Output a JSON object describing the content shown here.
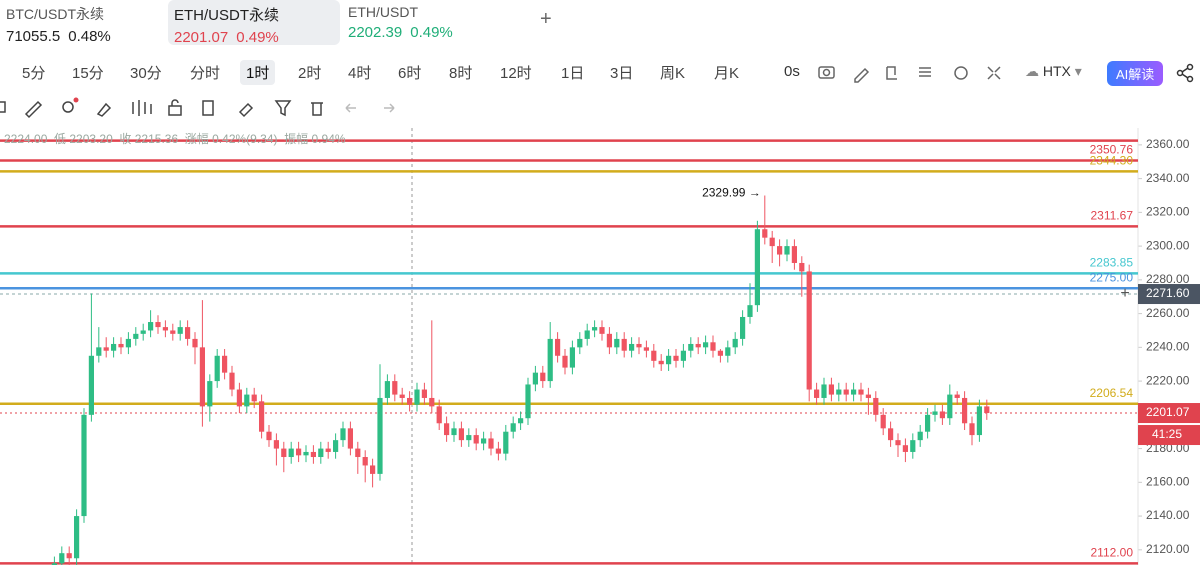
{
  "tabs": [
    {
      "symbol": "BTC/USDT永续",
      "price": "71055.5",
      "change": "0.48%"
    },
    {
      "symbol": "ETH/USDT永续",
      "price": "2201.07",
      "change": "0.49%"
    },
    {
      "symbol": "ETH/USDT",
      "price": "2202.39",
      "change": "0.49%"
    }
  ],
  "add_tab": "+",
  "timeframes": [
    "5分",
    "15分",
    "30分",
    "分时",
    "1时",
    "2时",
    "4时",
    "6时",
    "8时",
    "12时",
    "1日",
    "3日",
    "周K",
    "月K"
  ],
  "selected_timeframe": "1时",
  "refresh": "0s",
  "exchange": "HTX",
  "ai_button": "AI解读",
  "ohlc_info": "2224.00  低 2203.20  收 2215.36  涨幅 0.42%(9.34)  振幅 0.94%",
  "chart_data": {
    "type": "candlestick",
    "ylim": [
      2111,
      2370
    ],
    "yticks": [
      {
        "value": 2120,
        "label": "2120.00"
      },
      {
        "value": 2140,
        "label": "2140.00"
      },
      {
        "value": 2160,
        "label": "2160.00"
      },
      {
        "value": 2180,
        "label": "2180.00"
      },
      {
        "value": 2200,
        "label": "2200.00"
      },
      {
        "value": 2220,
        "label": "2220.00"
      },
      {
        "value": 2240,
        "label": "2240.00"
      },
      {
        "value": 2260,
        "label": "2260.00"
      },
      {
        "value": 2280,
        "label": "2280.00"
      },
      {
        "value": 2300,
        "label": "2300.00"
      },
      {
        "value": 2320,
        "label": "2320.00"
      },
      {
        "value": 2340,
        "label": "2340.00"
      },
      {
        "value": 2360,
        "label": "2360.00"
      }
    ],
    "up_color": "#2ebd85",
    "down_color": "#ef5461",
    "open": [
      2100,
      2105,
      2112,
      2118,
      2115,
      2140,
      2200,
      2235,
      2240,
      2238,
      2242,
      2240,
      2245,
      2248,
      2250,
      2255,
      2252,
      2250,
      2248,
      2252,
      2245,
      2240,
      2205,
      2220,
      2235,
      2225,
      2215,
      2205,
      2212,
      2208,
      2190,
      2185,
      2180,
      2175,
      2180,
      2176,
      2178,
      2175,
      2180,
      2178,
      2185,
      2192,
      2180,
      2175,
      2170,
      2165,
      2210,
      2220,
      2212,
      2210,
      2206,
      2215,
      2210,
      2205,
      2195,
      2188,
      2192,
      2185,
      2188,
      2183,
      2186,
      2180,
      2177,
      2190,
      2195,
      2198,
      2218,
      2225,
      2220,
      2245,
      2235,
      2228,
      2240,
      2245,
      2250,
      2252,
      2248,
      2240,
      2245,
      2238,
      2242,
      2240,
      2238,
      2232,
      2230,
      2235,
      2232,
      2238,
      2242,
      2240,
      2243,
      2238,
      2235,
      2240,
      2245,
      2258,
      2265,
      2310,
      2305,
      2300,
      2295,
      2300,
      2290,
      2285,
      2215,
      2210,
      2218,
      2212,
      2215,
      2212,
      2215,
      2212,
      2210,
      2200,
      2192,
      2185,
      2182,
      2178,
      2185,
      2190,
      2200,
      2202,
      2198,
      2212,
      2210,
      2195,
      2188,
      2205
    ],
    "high": [
      2109,
      2116,
      2122,
      2122,
      2144,
      2204,
      2272,
      2252,
      2246,
      2246,
      2246,
      2249,
      2252,
      2254,
      2262,
      2259,
      2256,
      2254,
      2256,
      2256,
      2249,
      2268,
      2224,
      2239,
      2239,
      2229,
      2219,
      2216,
      2216,
      2212,
      2194,
      2189,
      2184,
      2184,
      2184,
      2182,
      2182,
      2184,
      2184,
      2189,
      2196,
      2196,
      2184,
      2179,
      2174,
      2230,
      2224,
      2224,
      2216,
      2214,
      2219,
      2219,
      2256,
      2209,
      2199,
      2196,
      2196,
      2192,
      2192,
      2190,
      2190,
      2184,
      2194,
      2199,
      2202,
      2222,
      2229,
      2229,
      2255,
      2249,
      2239,
      2244,
      2249,
      2254,
      2256,
      2256,
      2252,
      2249,
      2249,
      2246,
      2246,
      2244,
      2242,
      2236,
      2239,
      2239,
      2242,
      2246,
      2246,
      2247,
      2247,
      2239,
      2244,
      2249,
      2262,
      2278,
      2315,
      2329.99,
      2309,
      2304,
      2304,
      2304,
      2294,
      2289,
      2219,
      2222,
      2222,
      2219,
      2219,
      2219,
      2219,
      2216,
      2214,
      2204,
      2196,
      2189,
      2186,
      2189,
      2194,
      2204,
      2206,
      2206,
      2218,
      2214,
      2214,
      2199,
      2209,
      2209
    ],
    "low": [
      2096,
      2101,
      2108,
      2111,
      2111,
      2136,
      2196,
      2231,
      2234,
      2234,
      2236,
      2236,
      2241,
      2244,
      2246,
      2248,
      2246,
      2244,
      2244,
      2241,
      2230,
      2193,
      2196,
      2216,
      2221,
      2211,
      2201,
      2201,
      2204,
      2186,
      2181,
      2170,
      2166,
      2171,
      2172,
      2172,
      2171,
      2171,
      2174,
      2174,
      2181,
      2176,
      2165,
      2160,
      2157,
      2161,
      2206,
      2208,
      2206,
      2202,
      2202,
      2206,
      2201,
      2191,
      2184,
      2184,
      2181,
      2181,
      2179,
      2179,
      2176,
      2173,
      2173,
      2186,
      2191,
      2194,
      2214,
      2216,
      2216,
      2231,
      2224,
      2224,
      2236,
      2241,
      2246,
      2244,
      2236,
      2236,
      2234,
      2234,
      2236,
      2234,
      2228,
      2226,
      2226,
      2228,
      2228,
      2234,
      2236,
      2236,
      2234,
      2231,
      2231,
      2236,
      2241,
      2254,
      2261,
      2301,
      2290,
      2288,
      2291,
      2286,
      2270,
      2208,
      2206,
      2206,
      2208,
      2208,
      2208,
      2208,
      2208,
      2200,
      2196,
      2188,
      2181,
      2175,
      2172,
      2174,
      2181,
      2186,
      2196,
      2194,
      2194,
      2206,
      2191,
      2182,
      2184,
      2197
    ],
    "close": [
      2105,
      2112,
      2118,
      2115,
      2140,
      2200,
      2235,
      2240,
      2238,
      2242,
      2240,
      2245,
      2248,
      2250,
      2255,
      2252,
      2250,
      2248,
      2252,
      2245,
      2240,
      2205,
      2220,
      2235,
      2225,
      2215,
      2205,
      2212,
      2208,
      2190,
      2185,
      2180,
      2175,
      2180,
      2176,
      2178,
      2175,
      2180,
      2178,
      2185,
      2192,
      2180,
      2175,
      2170,
      2165,
      2210,
      2220,
      2212,
      2210,
      2206,
      2215,
      2210,
      2205,
      2195,
      2188,
      2192,
      2185,
      2188,
      2183,
      2186,
      2180,
      2177,
      2190,
      2195,
      2198,
      2218,
      2225,
      2220,
      2245,
      2235,
      2228,
      2240,
      2245,
      2250,
      2252,
      2248,
      2240,
      2245,
      2238,
      2242,
      2240,
      2238,
      2232,
      2230,
      2235,
      2232,
      2238,
      2242,
      2240,
      2243,
      2238,
      2235,
      2240,
      2245,
      2258,
      2265,
      2310,
      2305,
      2300,
      2295,
      2300,
      2290,
      2285,
      2215,
      2210,
      2218,
      2212,
      2215,
      2212,
      2215,
      2212,
      2210,
      2200,
      2192,
      2185,
      2182,
      2178,
      2185,
      2190,
      2200,
      2202,
      2198,
      2212,
      2210,
      2195,
      2188,
      2205,
      2201.07
    ],
    "levels": [
      {
        "value": 2362.5,
        "color": "#e0434e"
      },
      {
        "value": 2350.76,
        "label": "2350.76",
        "color": "#e0434e"
      },
      {
        "value": 2344.3,
        "label": "2344.30",
        "color": "#d2ac1c"
      },
      {
        "value": 2311.67,
        "label": "2311.67",
        "color": "#e0434e"
      },
      {
        "value": 2283.85,
        "label": "2283.85",
        "color": "#45c7cf"
      },
      {
        "value": 2275,
        "label": "2275.00",
        "color": "#4a93df"
      },
      {
        "value": 2206.54,
        "label": "2206.54",
        "color": "#d2ac1c"
      },
      {
        "value": 2112,
        "label": "2112.00",
        "color": "#e0434e"
      }
    ],
    "peak": {
      "value": 2329.99,
      "label": "2329.99 →"
    },
    "crosshair": {
      "value": 2271.6,
      "label": "2271.60"
    },
    "last_price": 2201.07,
    "countdown": "41:25"
  }
}
